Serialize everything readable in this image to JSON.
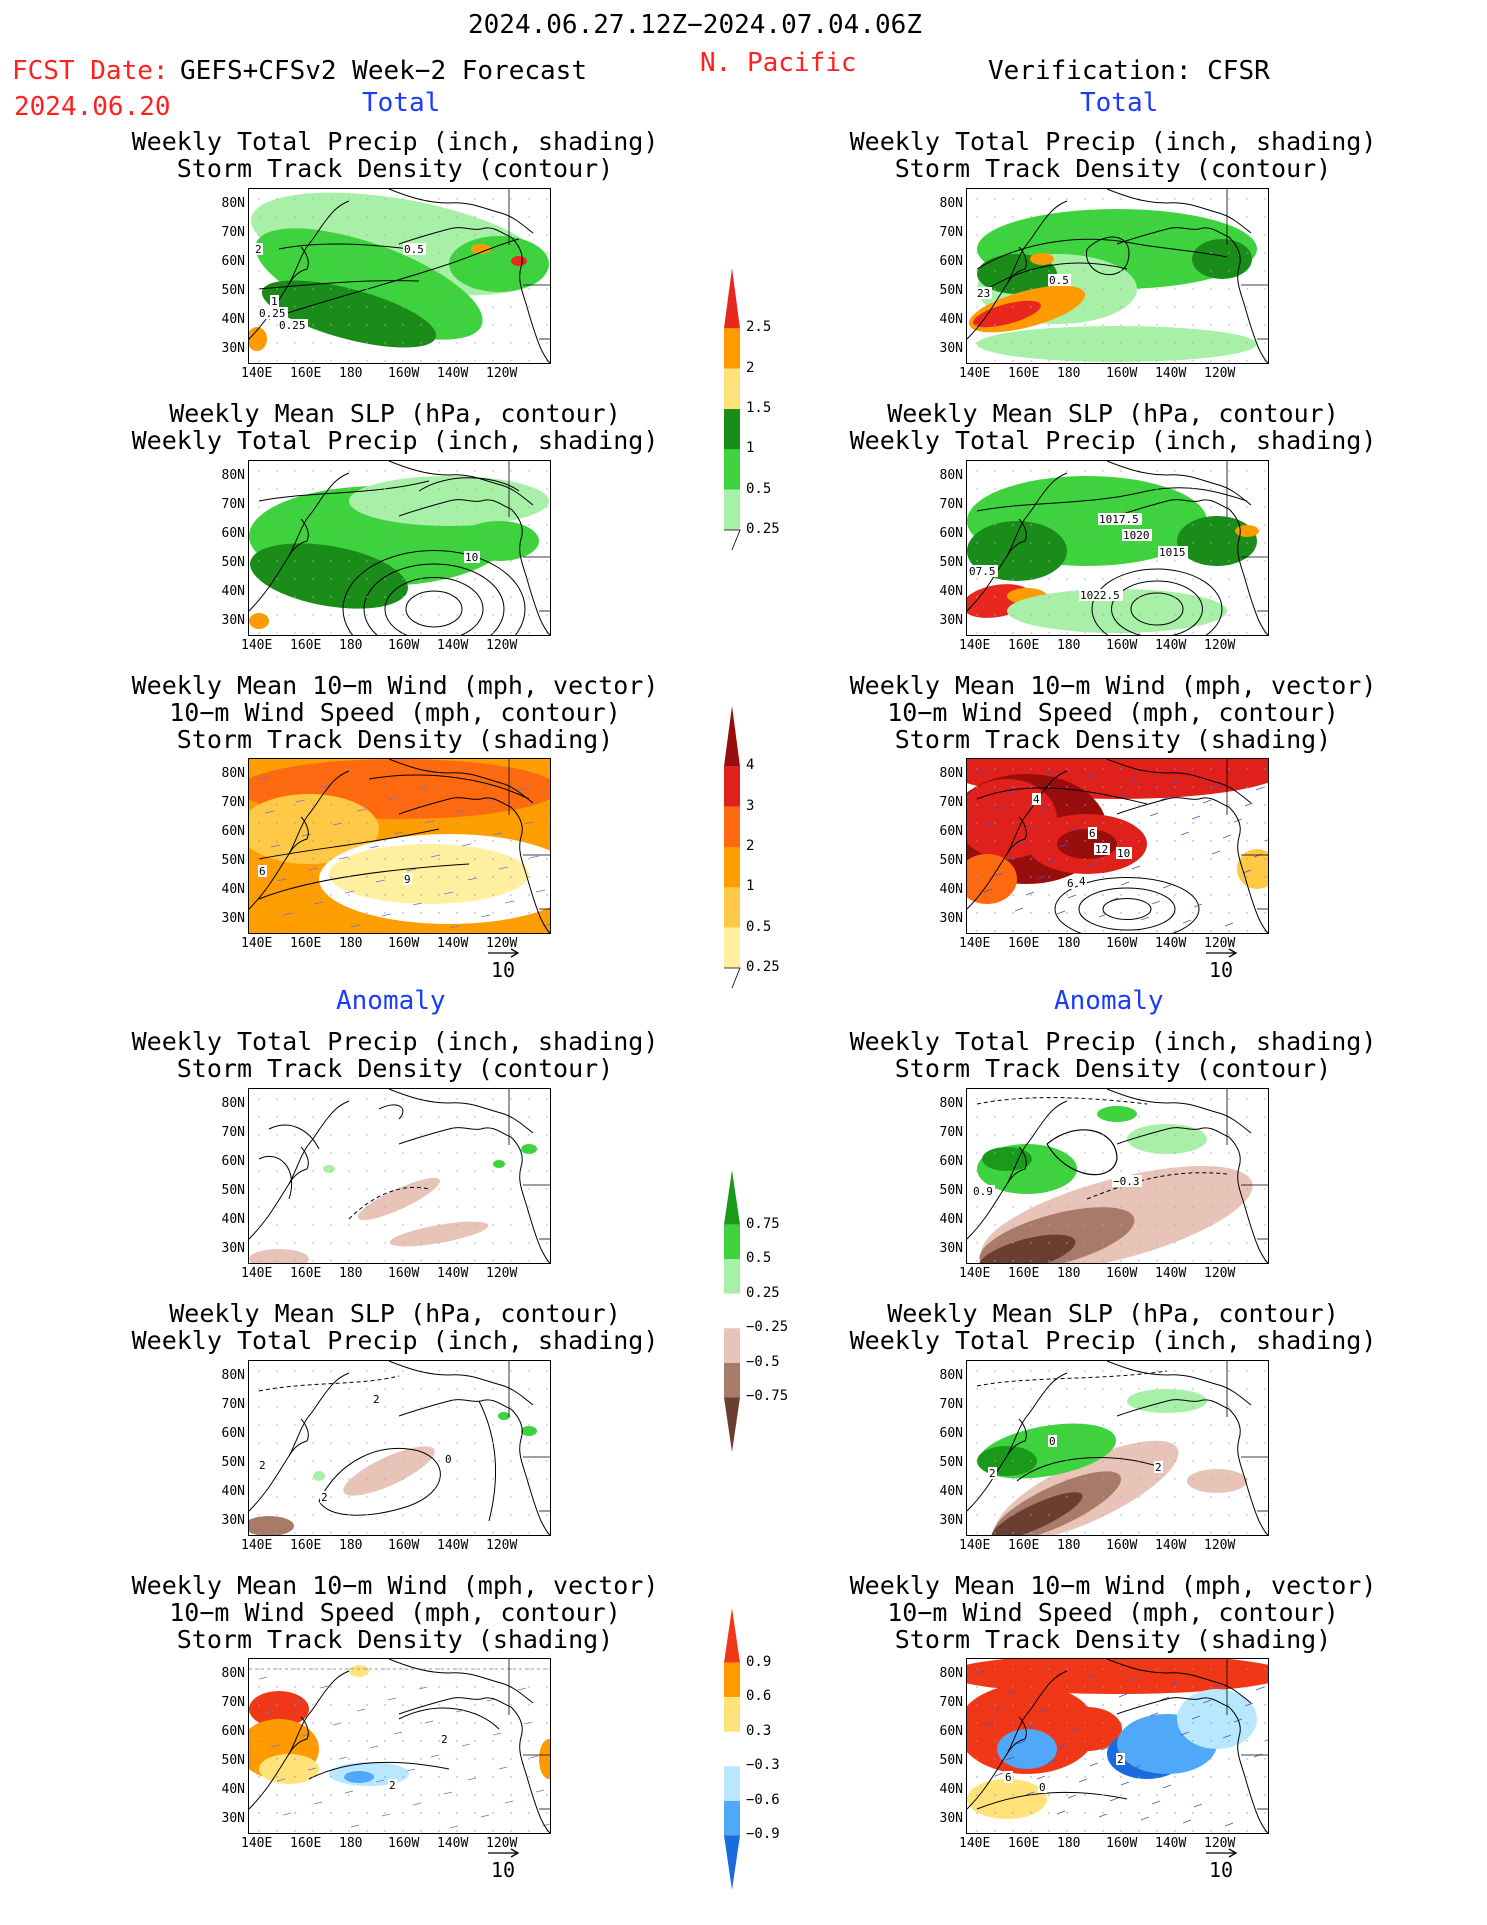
{
  "header": {
    "date_range": "2024.06.27.12Z−2024.07.04.06Z",
    "region": "N. Pacific",
    "fcst_label": "FCST Date:",
    "fcst_model": "GEFS+CFSv2 Week−2 Forecast",
    "fcst_date": "2024.06.20",
    "verification": "Verification: CFSR"
  },
  "sections": {
    "total": "Total",
    "anomaly": "Anomaly"
  },
  "panel_titles": {
    "precip_storm": [
      "Weekly Total Precip (inch, shading)",
      "Storm Track Density (contour)"
    ],
    "slp_precip": [
      "Weekly Mean SLP (hPa, contour)",
      "Weekly Total Precip (inch, shading)"
    ],
    "wind": [
      "Weekly Mean 10−m Wind (mph, vector)",
      "10−m Wind Speed (mph, contour)",
      "Storm Track Density (shading)"
    ]
  },
  "axes": {
    "lat_labels": [
      "80N",
      "70N",
      "60N",
      "50N",
      "40N",
      "30N"
    ],
    "lon_labels": [
      "140E",
      "160E",
      "180",
      "160W",
      "140W",
      "120W"
    ]
  },
  "vector_ref": "10",
  "colorbars": [
    {
      "name": "total-precip",
      "labels": [
        "2.5",
        "2",
        "1.5",
        "1",
        "0.5",
        "0.25"
      ],
      "colors": [
        "#e8281e",
        "#ff9a00",
        "#ffe37a",
        "#1a8c1a",
        "#3fd23f",
        "#a8f0a8"
      ]
    },
    {
      "name": "total-storm",
      "labels": [
        "4",
        "3",
        "2",
        "1",
        "0.5",
        "0.25"
      ],
      "colors": [
        "#9a0d0d",
        "#e0201a",
        "#ff6a10",
        "#ff9e00",
        "#ffc845",
        "#fff0a0"
      ]
    },
    {
      "name": "anom-precip",
      "labels": [
        "0.75",
        "0.5",
        "0.25",
        "−0.25",
        "−0.5",
        "−0.75"
      ],
      "colors": [
        "#1a9a1a",
        "#3fd23f",
        "#a8f0a8",
        "#ffffff",
        "#e8c4b8",
        "#a87a6a",
        "#6a3f30"
      ]
    },
    {
      "name": "anom-storm",
      "labels": [
        "0.9",
        "0.6",
        "0.3",
        "−0.3",
        "−0.6",
        "−0.9"
      ],
      "colors": [
        "#f03818",
        "#ff9a00",
        "#ffe37a",
        "#ffffff",
        "#b8e8ff",
        "#4fa8f8",
        "#1a6ae0"
      ]
    }
  ],
  "map_labels": {
    "f_total_precip": [
      "2",
      "0.25",
      "0.5",
      "1",
      "0.25"
    ],
    "v_total_precip": [
      "0.5",
      "23"
    ],
    "v_total_slp": [
      "1017.5",
      "1020",
      "1015",
      "07.5",
      "1022.5"
    ],
    "f_total_slp": [
      "10"
    ],
    "f_total_wind": [
      "6",
      "9"
    ],
    "v_total_wind": [
      "4",
      "6",
      "12",
      "10",
      "6",
      "4"
    ],
    "v_anom_precip": [
      "0.9",
      "−0.3"
    ],
    "f_anom_slp": [
      "2",
      "2",
      "0",
      "2"
    ],
    "v_anom_slp": [
      "0",
      "2",
      "2"
    ],
    "f_anom_wind": [
      "2",
      "2"
    ],
    "v_anom_wind": [
      "6",
      "0",
      "2"
    ]
  }
}
